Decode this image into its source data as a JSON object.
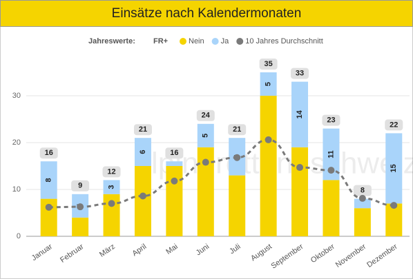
{
  "chart_data": {
    "type": "bar",
    "title": "Einsätze nach Kalendermonaten",
    "legend_title": "Jahreswerte:",
    "legend_subtitle": "FR+",
    "watermark": "alpinerettungschweiz",
    "categories": [
      "Januar",
      "Februar",
      "März",
      "April",
      "Mai",
      "Juni",
      "Juli",
      "August",
      "September",
      "Oktober",
      "November",
      "Dezember"
    ],
    "series": [
      {
        "name": "Nein",
        "color": "#f5d400",
        "values": [
          8,
          4,
          9,
          15,
          15,
          19,
          13,
          30,
          19,
          12,
          6,
          7
        ]
      },
      {
        "name": "Ja",
        "color": "#a9d4fa",
        "values": [
          8,
          5,
          3,
          6,
          1,
          5,
          8,
          5,
          14,
          11,
          2,
          15
        ],
        "value_labels": [
          "8",
          "5",
          "3",
          "6",
          null,
          "5",
          "8",
          "5",
          "14",
          "11",
          null,
          "15"
        ]
      },
      {
        "name": "10 Jahres Durchschnitt",
        "color": "#7a7a7a",
        "type": "line",
        "values": [
          6.2,
          6.3,
          7,
          8.6,
          11.8,
          15.8,
          16.8,
          20.6,
          14.7,
          14.1,
          8.1,
          6.6
        ]
      }
    ],
    "totals": [
      16,
      9,
      12,
      21,
      16,
      24,
      21,
      35,
      33,
      23,
      8,
      22
    ],
    "ylim": [
      0,
      38
    ],
    "yticks": [
      0,
      10,
      20,
      30
    ],
    "grid": true
  }
}
